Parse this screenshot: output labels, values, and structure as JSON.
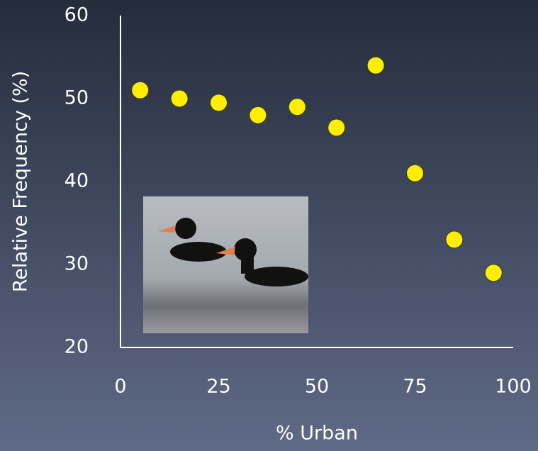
{
  "chart_data": {
    "type": "scatter",
    "xlabel": "% Urban",
    "ylabel": "Relative Frequency (%)",
    "x": [
      5,
      15,
      25,
      35,
      45,
      55,
      65,
      75,
      85,
      95
    ],
    "values": [
      51,
      50,
      49.5,
      48,
      49,
      46.5,
      54,
      41,
      33,
      29
    ],
    "color": "#ffee00",
    "xlim": [
      0,
      100
    ],
    "xticks": [
      0,
      25,
      50,
      75,
      100
    ],
    "ylim": [
      20,
      60
    ],
    "yticks": [
      20,
      30,
      40,
      50,
      60
    ],
    "grid": false
  }
}
